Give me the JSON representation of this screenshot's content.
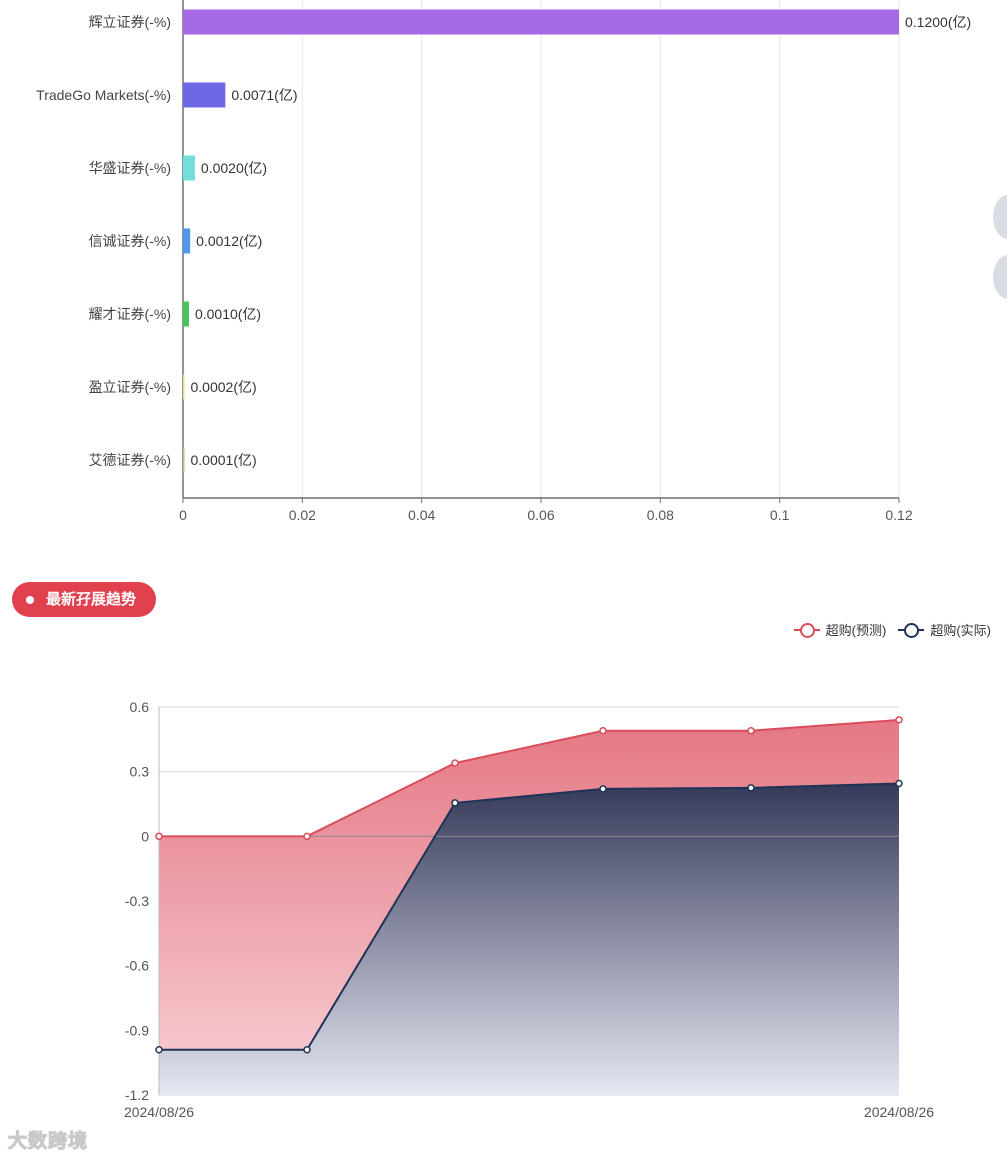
{
  "chart_data": [
    {
      "type": "bar",
      "orientation": "horizontal",
      "categories": [
        "辉立证券(-%)",
        "TradeGo Markets(-%)",
        "华盛证券(-%)",
        "信诚证券(-%)",
        "耀才证券(-%)",
        "盈立证券(-%)",
        "艾德证券(-%)"
      ],
      "values": [
        0.12,
        0.0071,
        0.002,
        0.0012,
        0.001,
        0.0002,
        0.0001
      ],
      "data_labels": [
        "0.1200(亿)",
        "0.0071(亿)",
        "0.0020(亿)",
        "0.0012(亿)",
        "0.0010(亿)",
        "0.0002(亿)",
        "0.0001(亿)"
      ],
      "colors": [
        "#a66ae4",
        "#6c68e4",
        "#71e0dc",
        "#4f97e8",
        "#48c55a",
        "#e8e08a",
        "#c9b9a0"
      ],
      "xticks": [
        "0",
        "0.02",
        "0.04",
        "0.06",
        "0.08",
        "0.1",
        "0.12"
      ],
      "xlim": [
        0,
        0.12
      ],
      "grid": true
    },
    {
      "type": "area",
      "x": [
        "2024/08/26",
        "",
        "",
        "",
        "",
        "2024/08/26"
      ],
      "series": [
        {
          "name": "超购(预测)",
          "values": [
            0,
            0,
            0.34,
            0.49,
            0.49,
            0.54
          ],
          "color": "#d94c5a"
        },
        {
          "name": "超购(实际)",
          "values": [
            -0.99,
            -0.99,
            0.155,
            0.22,
            0.225,
            0.245
          ],
          "color": "#1e3357"
        }
      ],
      "yticks": [
        "0.6",
        "0.3",
        "0",
        "-0.3",
        "-0.6",
        "-0.9",
        "-1.2"
      ],
      "ylim": [
        -1.2,
        0.6
      ],
      "legend_position": "top-right",
      "grid": true
    }
  ],
  "section": {
    "title": "最新孖展趋势"
  },
  "watermark": "大数跨境"
}
